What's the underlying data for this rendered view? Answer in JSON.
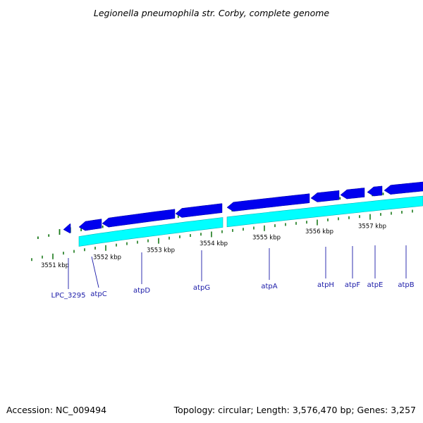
{
  "title": "Legionella pneumophila str. Corby, complete genome",
  "footer": {
    "accession": "Accession: NC_009494",
    "summary": "Topology: circular; Length: 3,576,470 bp; Genes: 3,257"
  },
  "colors": {
    "backbone": "#8c8c8c",
    "forward_cds": "#0000ee",
    "reverse_cds": "#00ffff",
    "other_feature": "#ff1493",
    "gc_skew": "#1a7a1a",
    "label": "#1a1aa8"
  },
  "ruler": {
    "labels": [
      "3551 kbp",
      "3552 kbp",
      "3553 kbp",
      "3554 kbp",
      "3555 kbp",
      "3556 kbp",
      "3557 kbp"
    ]
  },
  "genes": [
    {
      "name": "LPC_3295",
      "strand": "forward"
    },
    {
      "name": "atpC",
      "strand": "forward"
    },
    {
      "name": "atpD",
      "strand": "forward"
    },
    {
      "name": "atpG",
      "strand": "forward"
    },
    {
      "name": "atpA",
      "strand": "forward"
    },
    {
      "name": "atpH",
      "strand": "forward"
    },
    {
      "name": "atpF",
      "strand": "forward"
    },
    {
      "name": "atpE",
      "strand": "forward"
    },
    {
      "name": "atpB",
      "strand": "forward"
    }
  ]
}
